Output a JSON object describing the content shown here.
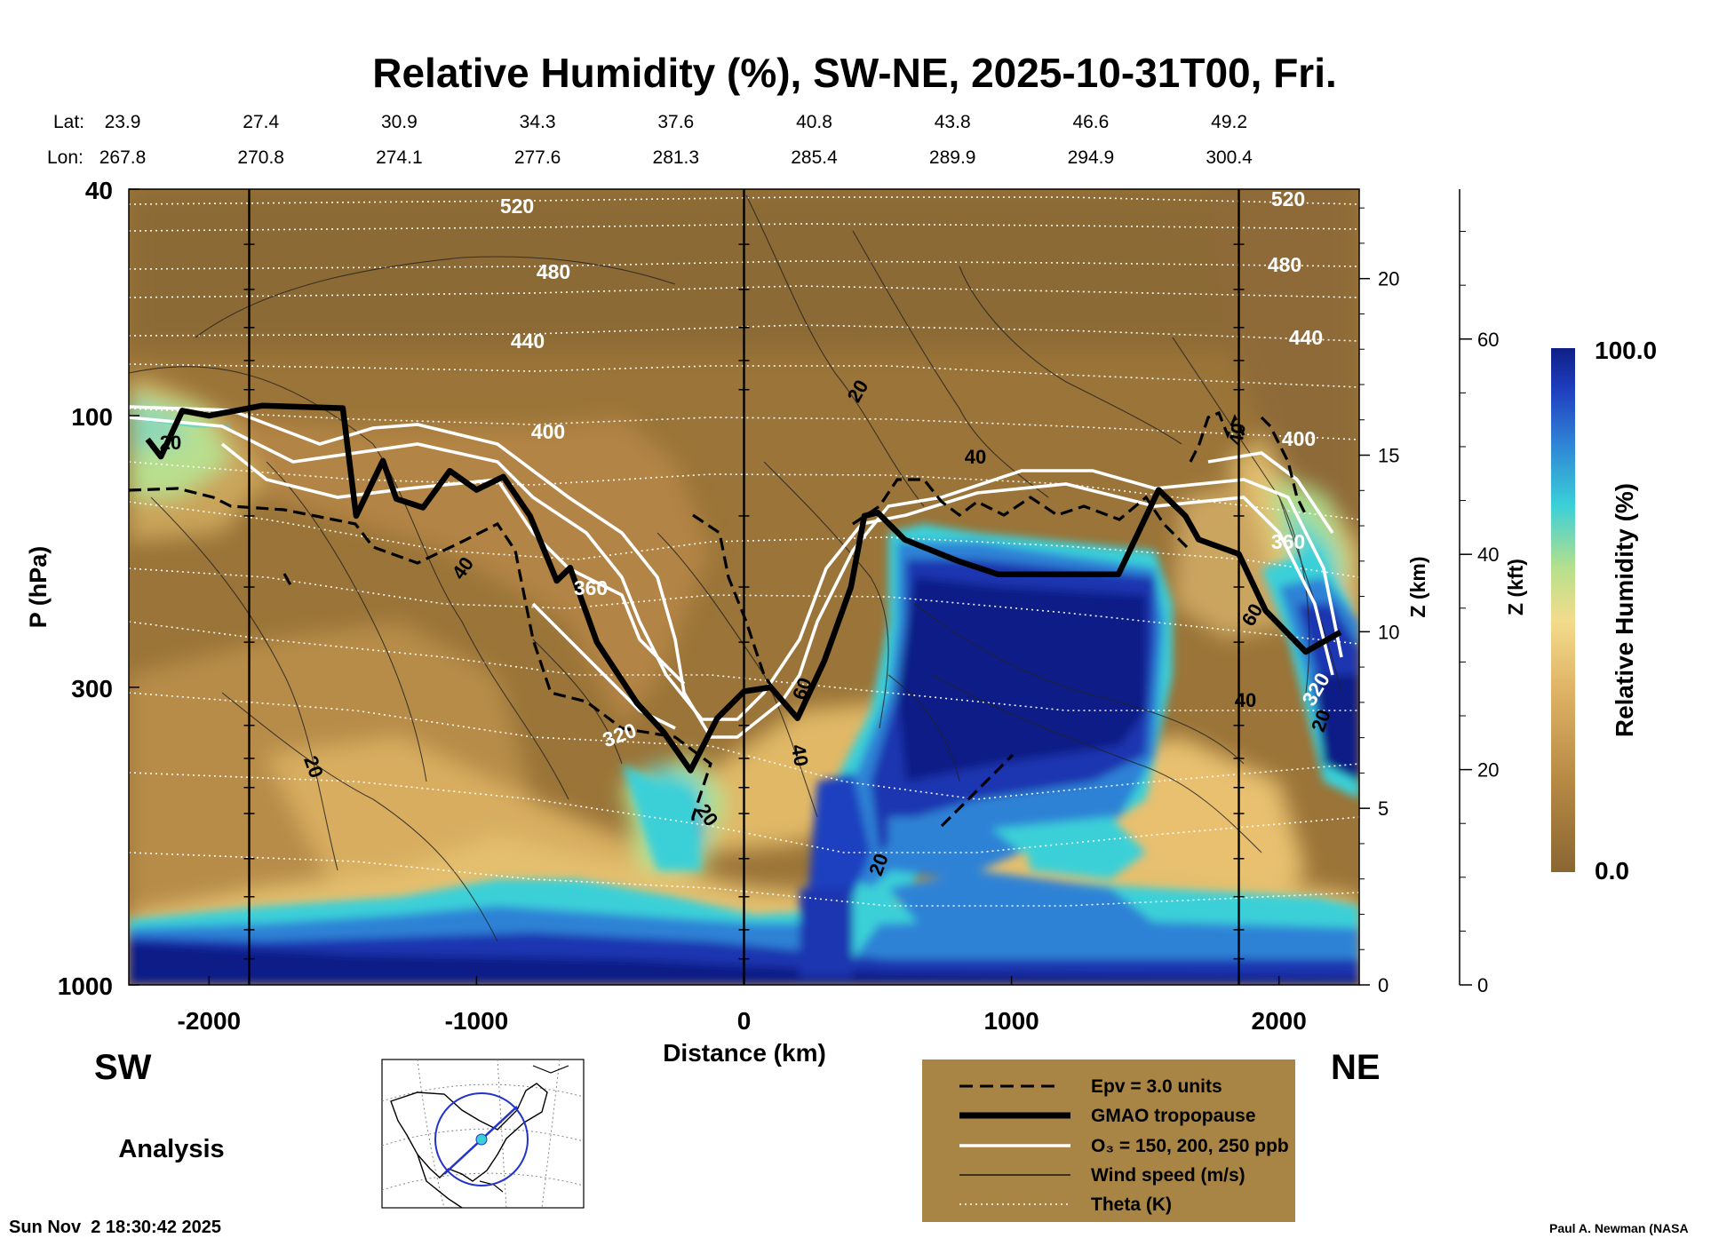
{
  "colors": {
    "background": "#ffffff",
    "legend_box": "#a88544",
    "dry": "#8a6632",
    "tan": "#b88b45",
    "light_tan": "#dfb466",
    "pale_yellow": "#f3dc8c",
    "green": "#b6e08c",
    "cyan": "#3ad0d8",
    "mid_blue": "#2f82d6",
    "blue": "#1f3fbf",
    "navy": "#0d1f86"
  },
  "chart_data": {
    "type": "heatmap",
    "title": "Relative Humidity (%), SW-NE, 2025-10-31T00, Fri.",
    "xlabel": "Distance (km)",
    "ylabel": "P (hPa)",
    "xlim": [
      -2300,
      2300
    ],
    "ylim_hpa": [
      1000,
      40
    ],
    "x_ticks": [
      -2000,
      -1000,
      0,
      1000,
      2000
    ],
    "x_tick_labels": [
      "-2000",
      "-1000",
      "0",
      "1000",
      "2000"
    ],
    "p_ticks": [
      40,
      100,
      300,
      1000
    ],
    "p_tick_labels": [
      "40",
      "100",
      "300",
      "1000"
    ],
    "z_km_ticks": [
      0,
      5,
      10,
      15,
      20
    ],
    "z_km_tick_labels": [
      "0",
      "5",
      "10",
      "15",
      "20"
    ],
    "z_km_label": "Z (km)",
    "z_kft_ticks": [
      0,
      20,
      40,
      60
    ],
    "z_kft_tick_labels": [
      "0",
      "20",
      "40",
      "60"
    ],
    "z_kft_label": "Z (kft)",
    "lat_header": "Lat:",
    "lon_header": "Lon:",
    "lat": [
      "23.9",
      "27.4",
      "30.9",
      "34.3",
      "37.6",
      "40.8",
      "43.8",
      "46.6",
      "49.2"
    ],
    "lon": [
      "267.8",
      "270.8",
      "274.1",
      "277.6",
      "281.3",
      "285.4",
      "289.9",
      "294.9",
      "300.4"
    ],
    "section_lines_km": [
      -1850,
      0,
      1850
    ],
    "theta_levels": [
      "520",
      "480",
      "440",
      "400",
      "360",
      "320"
    ],
    "wind_labels": [
      "20",
      "20",
      "40",
      "20",
      "20",
      "40",
      "60",
      "40",
      "20",
      "40",
      "60",
      "20",
      "40"
    ],
    "tropopause": [
      [
        -2230,
        110
      ],
      [
        -2180,
        118
      ],
      [
        -2100,
        98
      ],
      [
        -2000,
        100
      ],
      [
        -1900,
        98
      ],
      [
        -1800,
        96
      ],
      [
        -1500,
        97
      ],
      [
        -1450,
        150
      ],
      [
        -1350,
        120
      ],
      [
        -1300,
        140
      ],
      [
        -1200,
        145
      ],
      [
        -1100,
        125
      ],
      [
        -1000,
        135
      ],
      [
        -900,
        128
      ],
      [
        -800,
        150
      ],
      [
        -700,
        195
      ],
      [
        -650,
        185
      ],
      [
        -550,
        250
      ],
      [
        -400,
        320
      ],
      [
        -300,
        360
      ],
      [
        -200,
        420
      ],
      [
        -100,
        340
      ],
      [
        0,
        305
      ],
      [
        100,
        300
      ],
      [
        200,
        340
      ],
      [
        300,
        270
      ],
      [
        400,
        200
      ],
      [
        450,
        150
      ],
      [
        500,
        148
      ],
      [
        600,
        165
      ],
      [
        800,
        180
      ],
      [
        950,
        190
      ],
      [
        1200,
        190
      ],
      [
        1400,
        190
      ],
      [
        1550,
        135
      ],
      [
        1650,
        150
      ],
      [
        1700,
        165
      ],
      [
        1850,
        175
      ],
      [
        1950,
        220
      ],
      [
        2100,
        260
      ],
      [
        2230,
        240
      ]
    ],
    "colorbar": {
      "label": "Relative Humidity (%)",
      "min_label": "0.0",
      "max_label": "100.0",
      "min": 0,
      "max": 100
    },
    "legend": [
      {
        "style": "dashed",
        "label": "Epv = 3.0 units"
      },
      {
        "style": "thick",
        "label": "GMAO tropopause"
      },
      {
        "style": "white",
        "label": "O₃ = 150, 200, 250 ppb"
      },
      {
        "style": "thin",
        "label": "Wind speed (m/s)"
      },
      {
        "style": "dotted",
        "label": "Theta (K)"
      }
    ],
    "left_label": "SW",
    "right_label": "NE"
  },
  "analysis_label": "Analysis",
  "timestamp": "Sun Nov  2 18:30:42 2025",
  "credit": "Paul A. Newman (NASA"
}
